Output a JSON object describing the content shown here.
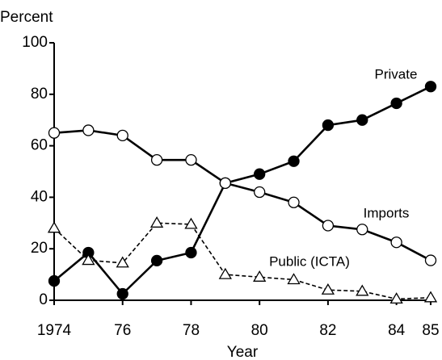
{
  "chart_data": {
    "type": "line",
    "y_label": "Percent",
    "x_label": "Year",
    "x": [
      1974,
      1975,
      1976,
      1977,
      1978,
      1979,
      1980,
      1981,
      1982,
      1983,
      1984,
      1985
    ],
    "series": [
      {
        "name": "Private",
        "color": "#000000",
        "marker": "filled-circle",
        "dashed": false,
        "values": [
          7.5,
          18.5,
          2.5,
          15.4,
          18.5,
          45.5,
          49,
          54,
          68,
          70,
          76.5,
          83
        ]
      },
      {
        "name": "Imports",
        "color": "#000000",
        "marker": "open-circle",
        "dashed": false,
        "values": [
          65,
          66,
          64,
          54.5,
          54.5,
          45.5,
          42,
          38,
          29,
          27.5,
          22.5,
          15.5
        ]
      },
      {
        "name": "Public (ICTA)",
        "color": "#000000",
        "marker": "open-triangle",
        "dashed": true,
        "values": [
          28,
          15.5,
          14.5,
          30,
          29.5,
          10,
          9,
          8,
          4,
          3.5,
          0.5,
          1
        ]
      }
    ],
    "xlim": [
      1974,
      1985
    ],
    "xticks": [
      1974,
      {
        "value": 1976,
        "label": "76"
      },
      {
        "value": 1978,
        "label": "78"
      },
      {
        "value": 1980,
        "label": "80"
      },
      {
        "value": 1982,
        "label": "82"
      },
      {
        "value": 1984,
        "label": "84"
      },
      {
        "value": 1985,
        "label": "85"
      }
    ],
    "ylim": [
      0,
      100
    ],
    "yticks": [
      0,
      20,
      40,
      60,
      80,
      100
    ]
  }
}
